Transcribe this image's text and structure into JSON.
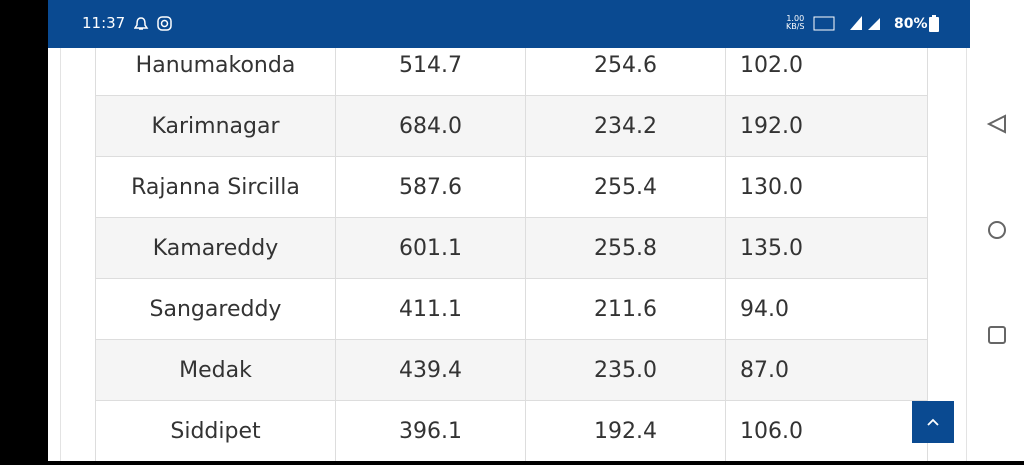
{
  "status_bar": {
    "time": "11:37",
    "speed": "1.00",
    "speed_unit": "KB/S",
    "battery": "80%"
  },
  "table": {
    "rows": [
      [
        "Hanumakonda",
        "514.7",
        "254.6",
        "102.0"
      ],
      [
        "Karimnagar",
        "684.0",
        "234.2",
        "192.0"
      ],
      [
        "Rajanna Sircilla",
        "587.6",
        "255.4",
        "130.0"
      ],
      [
        "Kamareddy",
        "601.1",
        "255.8",
        "135.0"
      ],
      [
        "Sangareddy",
        "411.1",
        "211.6",
        "94.0"
      ],
      [
        "Medak",
        "439.4",
        "235.0",
        "87.0"
      ],
      [
        "Siddipet",
        "396.1",
        "192.4",
        "106.0"
      ]
    ]
  }
}
